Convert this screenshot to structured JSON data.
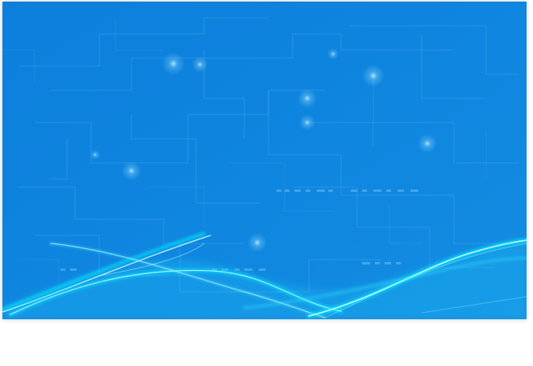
{
  "background": {
    "base_color": "#0f84dd",
    "circuit_line_color": "#5fb4ef",
    "node_glow_color": "#9fe2ff",
    "wave_colors": [
      "#00f0ff",
      "#4fe6ff",
      "#b8f8ff"
    ]
  }
}
